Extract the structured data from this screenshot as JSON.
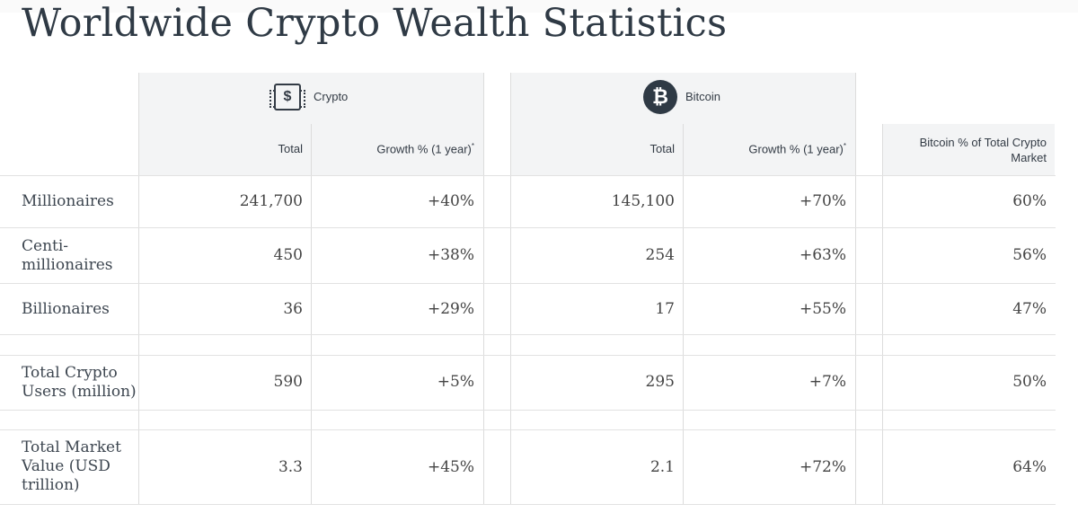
{
  "title": "Worldwide Crypto Wealth Statistics",
  "groups": {
    "crypto": {
      "label": "Crypto",
      "icon": "crypto-chip-icon",
      "symbol": "$"
    },
    "bitcoin": {
      "label": "Bitcoin",
      "icon": "bitcoin-icon",
      "symbol": "₿"
    }
  },
  "headers": {
    "total": "Total",
    "growth": "Growth % (1 year)",
    "growth_mark": "*",
    "share_line1": "Bitcoin % of Total Crypto",
    "share_line2": "Market"
  },
  "rows": [
    {
      "label": "Millionaires",
      "crypto_total": "241,700",
      "crypto_growth": "+40%",
      "btc_total": "145,100",
      "btc_growth": "+70%",
      "share": "60%"
    },
    {
      "label": "Centi-\nmillionaires",
      "crypto_total": "450",
      "crypto_growth": "+38%",
      "btc_total": "254",
      "btc_growth": "+63%",
      "share": "56%"
    },
    {
      "label": "Billionaires",
      "crypto_total": "36",
      "crypto_growth": "+29%",
      "btc_total": "17",
      "btc_growth": "+55%",
      "share": "47%"
    },
    {
      "label": "Total Crypto\nUsers (million)",
      "crypto_total": "590",
      "crypto_growth": "+5%",
      "btc_total": "295",
      "btc_growth": "+7%",
      "share": "50%"
    },
    {
      "label": "Total Market\nValue (USD\ntrillion)",
      "crypto_total": "3.3",
      "crypto_growth": "+45%",
      "btc_total": "2.1",
      "btc_growth": "+72%",
      "share": "64%"
    }
  ]
}
